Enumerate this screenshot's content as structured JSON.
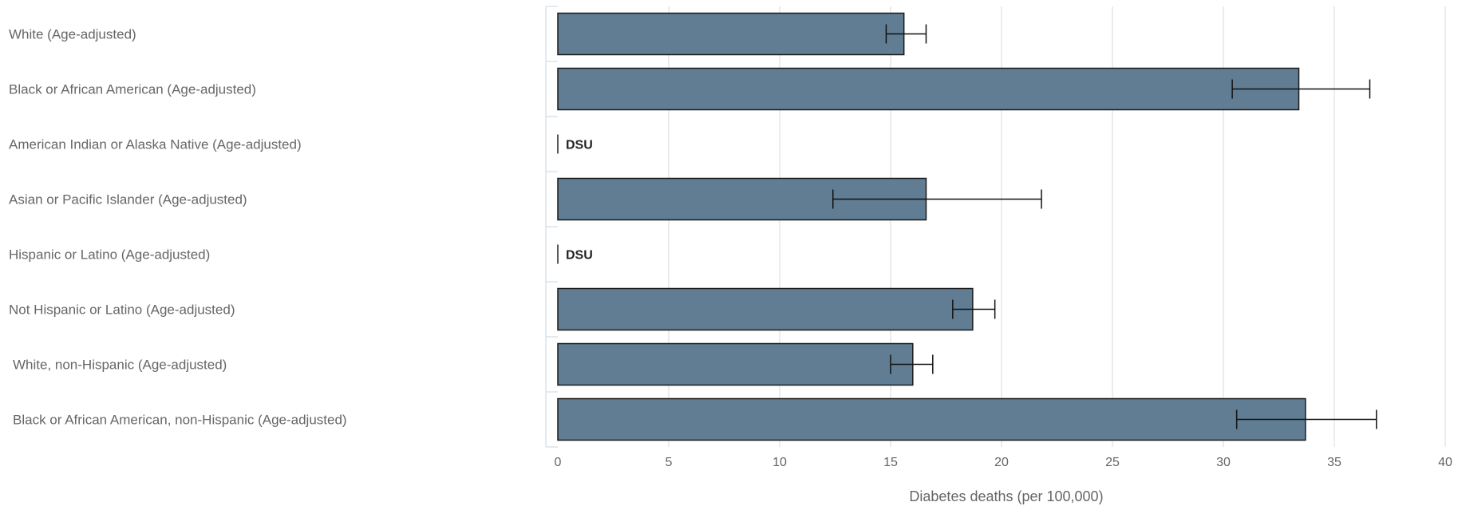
{
  "chart_data": {
    "type": "bar",
    "orientation": "horizontal",
    "title": "",
    "xlabel": "Diabetes deaths (per 100,000)",
    "ylabel": "",
    "xlim": [
      0,
      40
    ],
    "xticks": [
      0,
      5,
      10,
      15,
      20,
      25,
      30,
      35,
      40
    ],
    "grid": "vertical",
    "bar_color": "#607d93",
    "categories": [
      "White (Age-adjusted)",
      "Black or African American (Age-adjusted)",
      "American Indian or Alaska Native (Age-adjusted)",
      "Asian or Pacific Islander (Age-adjusted)",
      "Hispanic or Latino (Age-adjusted)",
      "Not Hispanic or Latino (Age-adjusted)",
      "White, non-Hispanic (Age-adjusted)",
      "Black or African American, non-Hispanic (Age-adjusted)"
    ],
    "values": [
      15.6,
      33.4,
      null,
      16.6,
      null,
      18.7,
      16.0,
      33.7
    ],
    "ci_lower": [
      14.8,
      30.4,
      null,
      12.4,
      null,
      17.8,
      15.0,
      30.6
    ],
    "ci_upper": [
      16.6,
      36.6,
      null,
      21.8,
      null,
      19.7,
      16.9,
      36.9
    ],
    "suppressed_label": "DSU"
  }
}
